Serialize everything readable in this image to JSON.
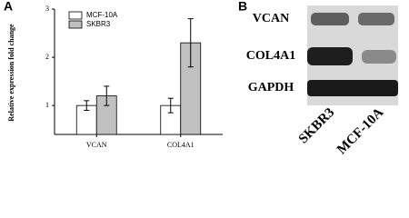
{
  "chart_data": {
    "type": "bar",
    "panel_label": "A",
    "y_label": "Relative expression fold change",
    "categories": [
      "VCAN",
      "COL4A1"
    ],
    "series": [
      {
        "name": "MCF-10A",
        "color": "#ffffff",
        "values": [
          1.0,
          1.0
        ],
        "errors": [
          0.1,
          0.15
        ]
      },
      {
        "name": "SKBR3",
        "color": "#c0c0c0",
        "values": [
          1.2,
          2.3
        ],
        "errors": [
          0.2,
          0.5
        ]
      }
    ],
    "ylim": [
      0.4,
      3.0
    ],
    "yticks": [
      1,
      2,
      3
    ],
    "legend": "upper left"
  },
  "blot": {
    "panel_label": "B",
    "rows": [
      "VCAN",
      "COL4A1",
      "GAPDH"
    ],
    "columns": [
      "SKBR3",
      "MCF-10A"
    ]
  }
}
